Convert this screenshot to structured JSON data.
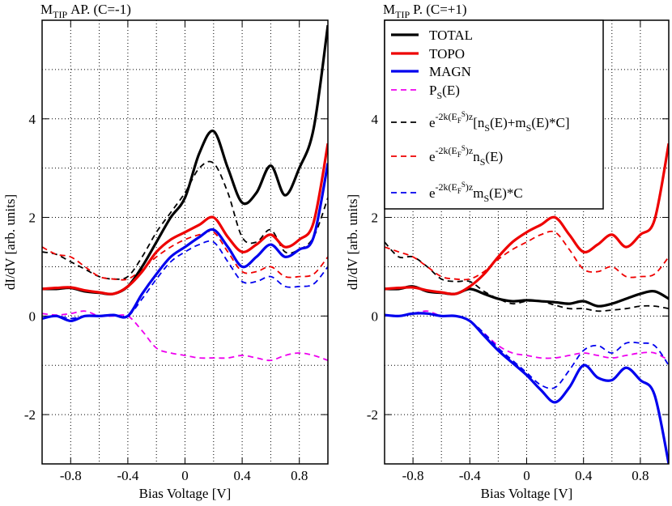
{
  "chart_data": [
    {
      "type": "line",
      "title": {
        "main": "M",
        "sub": "TIP",
        "rest": "AP. (C=-1)"
      },
      "x_label": "Bias Voltage [V]",
      "y_label": "dI/dV [arb. units]",
      "xlim": [
        -1,
        1
      ],
      "xticks": [
        -0.8,
        -0.4,
        0,
        0.4,
        0.8
      ],
      "xminor": [
        -0.6,
        -0.2,
        0.2,
        0.6
      ],
      "ylim": [
        -3,
        6
      ],
      "yticks": [
        -2,
        0,
        2,
        4
      ],
      "yminor": [
        -1,
        1,
        3,
        5
      ],
      "grid": true,
      "x": [
        -1,
        -0.9,
        -0.8,
        -0.7,
        -0.6,
        -0.5,
        -0.4,
        -0.3,
        -0.2,
        -0.1,
        0,
        0.1,
        0.2,
        0.3,
        0.4,
        0.5,
        0.6,
        0.7,
        0.8,
        0.9,
        1
      ],
      "series": [
        {
          "color": "#000000",
          "dash": false,
          "values": [
            0.55,
            0.55,
            0.57,
            0.5,
            0.47,
            0.45,
            0.6,
            1.0,
            1.5,
            2.0,
            2.4,
            3.3,
            3.75,
            3.0,
            2.3,
            2.5,
            3.05,
            2.45,
            3.0,
            3.8,
            5.9
          ]
        },
        {
          "color": "#ee0000",
          "dash": false,
          "values": [
            0.55,
            0.57,
            0.58,
            0.52,
            0.48,
            0.45,
            0.6,
            0.9,
            1.3,
            1.55,
            1.7,
            1.85,
            2.0,
            1.6,
            1.3,
            1.45,
            1.65,
            1.4,
            1.55,
            1.9,
            3.5
          ]
        },
        {
          "color": "#0000ee",
          "dash": false,
          "values": [
            -0.05,
            0,
            -0.1,
            0,
            0,
            0.02,
            0,
            0.45,
            0.85,
            1.2,
            1.4,
            1.6,
            1.75,
            1.4,
            1.0,
            1.2,
            1.45,
            1.2,
            1.35,
            1.6,
            3.1
          ]
        },
        {
          "color": "#ee00ee",
          "dash": true,
          "values": [
            0.05,
            0.02,
            0.05,
            0.1,
            0,
            0,
            0,
            -0.3,
            -0.65,
            -0.75,
            -0.8,
            -0.85,
            -0.85,
            -0.85,
            -0.8,
            -0.85,
            -0.9,
            -0.8,
            -0.75,
            -0.8,
            -0.9
          ]
        },
        {
          "color": "#000000",
          "dash": true,
          "values": [
            1.3,
            1.25,
            1.1,
            0.95,
            0.8,
            0.75,
            0.8,
            1.2,
            1.7,
            2.1,
            2.5,
            3.0,
            3.1,
            2.5,
            1.6,
            1.5,
            1.75,
            1.3,
            1.35,
            1.6,
            2.4
          ]
        },
        {
          "color": "#ee0000",
          "dash": true,
          "values": [
            1.4,
            1.25,
            1.2,
            1.0,
            0.8,
            0.75,
            0.75,
            0.95,
            1.2,
            1.4,
            1.55,
            1.65,
            1.7,
            1.3,
            0.9,
            0.9,
            1.0,
            0.8,
            0.8,
            0.85,
            1.2
          ]
        },
        {
          "color": "#0000ee",
          "dash": true,
          "values": [
            -0.05,
            0,
            -0.05,
            0,
            0,
            0.02,
            0,
            0.35,
            0.75,
            1.1,
            1.3,
            1.45,
            1.5,
            1.1,
            0.7,
            0.7,
            0.8,
            0.6,
            0.6,
            0.65,
            1.0
          ]
        }
      ]
    },
    {
      "type": "line",
      "title": {
        "main": "M",
        "sub": "TIP",
        "rest": "P. (C=+1)"
      },
      "x_label": "Bias Voltage [V]",
      "y_label": "dI/dV [arb. units]",
      "xlim": [
        -1,
        1
      ],
      "xticks": [
        -0.8,
        -0.4,
        0,
        0.4,
        0.8
      ],
      "xminor": [
        -0.6,
        -0.2,
        0.2,
        0.6
      ],
      "ylim": [
        -3,
        6
      ],
      "yticks": [
        -2,
        0,
        2,
        4
      ],
      "yminor": [
        -1,
        1,
        3,
        5
      ],
      "grid": true,
      "legend": "top-left",
      "x": [
        -1,
        -0.9,
        -0.8,
        -0.7,
        -0.6,
        -0.5,
        -0.4,
        -0.3,
        -0.2,
        -0.1,
        0,
        0.1,
        0.2,
        0.3,
        0.4,
        0.5,
        0.6,
        0.7,
        0.8,
        0.9,
        1
      ],
      "series": [
        {
          "name": [
            {
              "t": "TOTAL"
            }
          ],
          "color": "#000000",
          "dash": false,
          "values": [
            0.55,
            0.55,
            0.6,
            0.5,
            0.47,
            0.45,
            0.55,
            0.45,
            0.35,
            0.3,
            0.32,
            0.3,
            0.28,
            0.25,
            0.3,
            0.2,
            0.25,
            0.35,
            0.45,
            0.5,
            0.35
          ]
        },
        {
          "name": [
            {
              "t": "TOPO"
            }
          ],
          "color": "#ee0000",
          "dash": false,
          "values": [
            0.55,
            0.57,
            0.58,
            0.52,
            0.48,
            0.45,
            0.6,
            0.85,
            1.2,
            1.5,
            1.7,
            1.85,
            2.0,
            1.65,
            1.3,
            1.45,
            1.65,
            1.4,
            1.65,
            1.95,
            3.5
          ]
        },
        {
          "name": [
            {
              "t": "MAGN"
            }
          ],
          "color": "#0000ee",
          "dash": false,
          "values": [
            0.02,
            0,
            0.05,
            0.05,
            0,
            0,
            -0.1,
            -0.4,
            -0.7,
            -0.95,
            -1.2,
            -1.5,
            -1.75,
            -1.45,
            -1.0,
            -1.25,
            -1.3,
            -1.05,
            -1.3,
            -1.6,
            -3.0
          ]
        },
        {
          "name": [
            {
              "t": "P"
            },
            {
              "t": "S",
              "s": "sub"
            },
            {
              "t": "(E)"
            }
          ],
          "color": "#ee00ee",
          "dash": true,
          "values": [
            0.02,
            0,
            0.05,
            0.1,
            0,
            0,
            -0.1,
            -0.35,
            -0.6,
            -0.75,
            -0.8,
            -0.85,
            -0.85,
            -0.8,
            -0.75,
            -0.8,
            -0.85,
            -0.8,
            -0.75,
            -0.75,
            -0.9
          ]
        },
        {
          "name": [
            {
              "t": "e"
            },
            {
              "t": "-2k(E",
              "s": "sup"
            },
            {
              "t": "F",
              "s": "supsub"
            },
            {
              "t": "S",
              "s": "supsup"
            },
            {
              "t": ")z",
              "s": "sup"
            },
            {
              "t": "[n"
            },
            {
              "t": "S",
              "s": "sub"
            },
            {
              "t": "(E)+m"
            },
            {
              "t": "S",
              "s": "sub"
            },
            {
              "t": "(E)*C]"
            }
          ],
          "color": "#000000",
          "dash": true,
          "values": [
            1.5,
            1.2,
            1.2,
            1.0,
            0.75,
            0.7,
            0.7,
            0.5,
            0.35,
            0.25,
            0.3,
            0.3,
            0.22,
            0.15,
            0.15,
            0.1,
            0.12,
            0.15,
            0.2,
            0.2,
            0.15
          ]
        },
        {
          "name": [
            {
              "t": "e"
            },
            {
              "t": "-2k(E",
              "s": "sup"
            },
            {
              "t": "F",
              "s": "supsub"
            },
            {
              "t": "S",
              "s": "supsup"
            },
            {
              "t": ")z",
              "s": "sup"
            },
            {
              "t": "n"
            },
            {
              "t": "S",
              "s": "sub"
            },
            {
              "t": "(E)"
            }
          ],
          "color": "#ee0000",
          "dash": true,
          "values": [
            1.4,
            1.3,
            1.2,
            1.0,
            0.8,
            0.75,
            0.75,
            0.9,
            1.15,
            1.35,
            1.5,
            1.65,
            1.7,
            1.35,
            0.95,
            0.9,
            1.0,
            0.8,
            0.8,
            0.85,
            1.2
          ]
        },
        {
          "name": [
            {
              "t": "e"
            },
            {
              "t": "-2k(E",
              "s": "sup"
            },
            {
              "t": "F",
              "s": "supsub"
            },
            {
              "t": "S",
              "s": "supsup"
            },
            {
              "t": ")z",
              "s": "sup"
            },
            {
              "t": "m"
            },
            {
              "t": "S",
              "s": "sub"
            },
            {
              "t": "(E)*C"
            }
          ],
          "color": "#0000ee",
          "dash": true,
          "values": [
            0.02,
            0,
            0.05,
            0.05,
            0,
            0,
            -0.1,
            -0.35,
            -0.65,
            -0.9,
            -1.15,
            -1.4,
            -1.45,
            -1.1,
            -0.7,
            -0.6,
            -0.75,
            -0.55,
            -0.55,
            -0.6,
            -1.0
          ]
        }
      ]
    }
  ]
}
